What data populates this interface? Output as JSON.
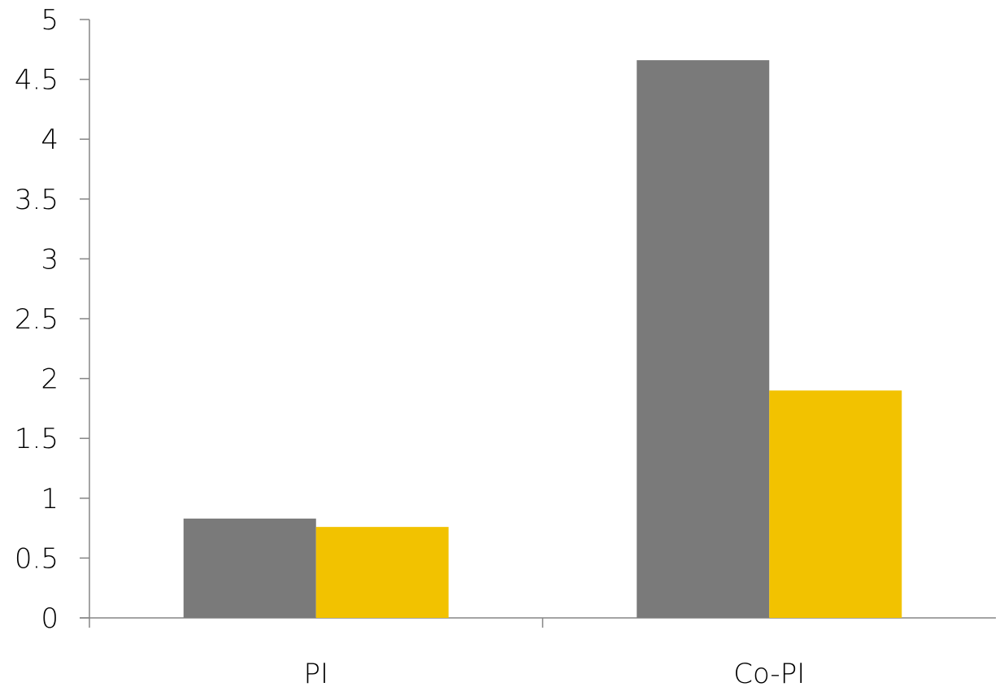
{
  "chart_data": {
    "type": "bar",
    "title": "",
    "xlabel": "",
    "ylabel": "",
    "categories": [
      "PI",
      "Co-PI"
    ],
    "series": [
      {
        "values": [
          0.83,
          4.66
        ]
      },
      {
        "values": [
          0.76,
          1.9
        ]
      }
    ],
    "ylim": [
      0,
      5
    ],
    "yticks": [
      0,
      0.5,
      1,
      1.5,
      2,
      2.5,
      3,
      3.5,
      4,
      4.5,
      5
    ],
    "ytick_labels": [
      "0",
      "0.5",
      "1",
      "1.5",
      "2",
      "2.5",
      "3",
      "3.5",
      "4",
      "4.5",
      "5"
    ],
    "grid": false,
    "legend": "none"
  },
  "colors": {
    "series_0": "#7a7a7a",
    "series_1": "#f2c200",
    "axis": "#868686"
  }
}
